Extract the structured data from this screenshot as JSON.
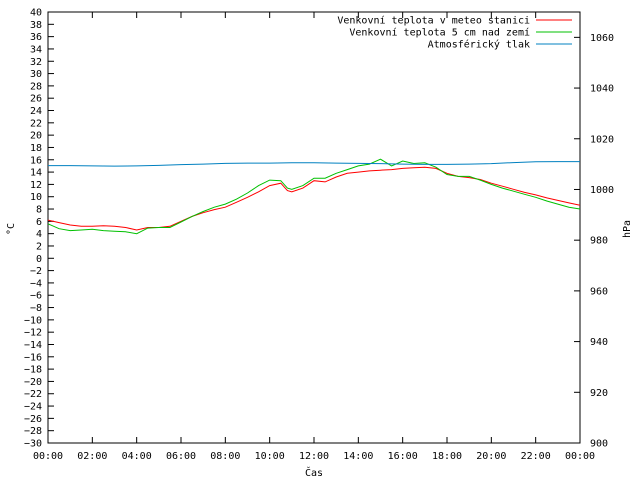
{
  "chart_data": {
    "type": "line",
    "title": "",
    "xlabel": "Čas",
    "ylabel": "°C",
    "y2label": "hPa",
    "xlim": [
      0,
      24
    ],
    "ylim": [
      -30,
      40
    ],
    "y2lim": [
      900,
      1070
    ],
    "x_ticks": [
      "00:00",
      "02:00",
      "04:00",
      "06:00",
      "08:00",
      "10:00",
      "12:00",
      "14:00",
      "16:00",
      "18:00",
      "20:00",
      "22:00",
      "00:00"
    ],
    "y_ticks": [
      40,
      38,
      36,
      34,
      32,
      30,
      28,
      26,
      24,
      22,
      20,
      18,
      16,
      14,
      12,
      10,
      8,
      6,
      4,
      2,
      0,
      -2,
      -4,
      -6,
      -8,
      -10,
      -12,
      -14,
      -16,
      -18,
      -20,
      -22,
      -24,
      -26,
      -28,
      -30
    ],
    "y2_ticks": [
      1060,
      1040,
      1020,
      1000,
      980,
      960,
      940,
      920,
      900
    ],
    "legend_position": "top-right",
    "grid": false,
    "series": [
      {
        "name": "Venkovní teplota v meteo stanici",
        "color": "#ff0000",
        "axis": "left",
        "x": [
          0,
          0.5,
          1,
          1.5,
          2,
          2.5,
          3,
          3.5,
          4,
          4.5,
          5,
          5.5,
          6,
          6.5,
          7,
          7.5,
          8,
          8.5,
          9,
          9.5,
          10,
          10.5,
          10.8,
          11,
          11.5,
          12,
          12.5,
          13,
          13.5,
          14,
          14.5,
          15,
          15.5,
          16,
          16.5,
          17,
          17.5,
          18,
          18.5,
          19,
          19.5,
          20,
          20.5,
          21,
          21.5,
          22,
          22.5,
          23,
          23.5,
          24
        ],
        "y": [
          6.2,
          5.8,
          5.4,
          5.2,
          5.2,
          5.3,
          5.2,
          5.0,
          4.6,
          5.0,
          5.0,
          5.2,
          6.0,
          6.8,
          7.4,
          7.9,
          8.3,
          9.1,
          9.9,
          10.8,
          11.8,
          12.2,
          11.0,
          10.8,
          11.4,
          12.6,
          12.4,
          13.2,
          13.8,
          14.0,
          14.2,
          14.3,
          14.4,
          14.6,
          14.7,
          14.8,
          14.6,
          13.8,
          13.3,
          13.1,
          12.8,
          12.2,
          11.7,
          11.2,
          10.7,
          10.3,
          9.8,
          9.4,
          9.0,
          8.6
        ]
      },
      {
        "name": "Venkovní teplota 5 cm nad zemí",
        "color": "#00c000",
        "axis": "left",
        "x": [
          0,
          0.5,
          1,
          1.5,
          2,
          2.5,
          3,
          3.5,
          4,
          4.5,
          5,
          5.5,
          6,
          6.5,
          7,
          7.5,
          8,
          8.5,
          9,
          9.5,
          10,
          10.5,
          10.8,
          11,
          11.5,
          12,
          12.5,
          13,
          13.5,
          14,
          14.5,
          15,
          15.5,
          16,
          16.5,
          17,
          17.5,
          18,
          18.5,
          19,
          19.5,
          20,
          20.5,
          21,
          21.5,
          22,
          22.5,
          23,
          23.5,
          24
        ],
        "y": [
          5.6,
          4.8,
          4.5,
          4.6,
          4.7,
          4.5,
          4.4,
          4.3,
          4.0,
          4.9,
          5.0,
          5.0,
          5.9,
          6.8,
          7.6,
          8.3,
          8.8,
          9.6,
          10.6,
          11.8,
          12.7,
          12.6,
          11.4,
          11.2,
          11.8,
          13.0,
          13.0,
          13.8,
          14.4,
          15.0,
          15.3,
          16.1,
          15.0,
          15.8,
          15.4,
          15.5,
          14.8,
          13.6,
          13.3,
          13.3,
          12.7,
          12.0,
          11.4,
          10.9,
          10.4,
          9.9,
          9.3,
          8.8,
          8.3,
          8.0
        ]
      },
      {
        "name": "Atmosférický tlak",
        "color": "#0080c0",
        "axis": "right",
        "x": [
          0,
          1,
          2,
          3,
          4,
          5,
          6,
          7,
          8,
          9,
          10,
          11,
          12,
          13,
          14,
          15,
          16,
          17,
          18,
          19,
          20,
          21,
          22,
          23,
          24
        ],
        "y": [
          1009.4,
          1009.4,
          1009.3,
          1009.2,
          1009.3,
          1009.5,
          1009.8,
          1010.0,
          1010.3,
          1010.4,
          1010.4,
          1010.5,
          1010.5,
          1010.4,
          1010.3,
          1010.2,
          1010.0,
          1009.9,
          1009.9,
          1010.0,
          1010.2,
          1010.6,
          1010.9,
          1011.0,
          1011.0
        ]
      }
    ]
  }
}
